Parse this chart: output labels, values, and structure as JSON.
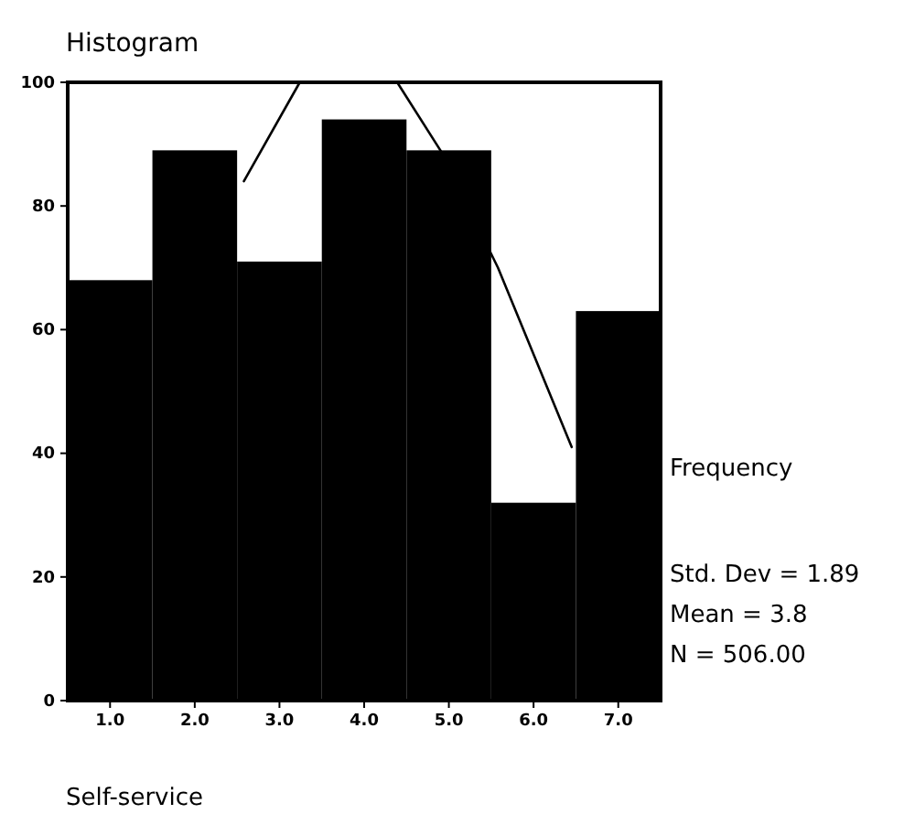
{
  "chart_data": {
    "type": "histogram",
    "title": "Histogram",
    "xlabel": "Self-service",
    "ylabel": "Frequency",
    "bins": [
      0.5,
      1.5,
      2.5,
      3.5,
      4.5,
      5.5,
      6.5,
      7.5
    ],
    "values": [
      68,
      89,
      71,
      94,
      89,
      32,
      63
    ],
    "color": "#000000",
    "series": [
      {
        "type": "line",
        "color": "#000000",
        "x": [
          2.58,
          3.24,
          3.8,
          4.39,
          4.9,
          5.58,
          6.45
        ],
        "values": [
          84,
          100,
          null,
          100,
          89,
          70,
          41
        ]
      }
    ],
    "xlim": [
      0.5,
      7.5
    ],
    "ylim": [
      0,
      100
    ],
    "xticks": [
      {
        "value": 1,
        "label": "1.0"
      },
      {
        "value": 2,
        "label": "2.0"
      },
      {
        "value": 3,
        "label": "3.0"
      },
      {
        "value": 4,
        "label": "4.0"
      },
      {
        "value": 5,
        "label": "5.0"
      },
      {
        "value": 6,
        "label": "6.0"
      },
      {
        "value": 7,
        "label": "7.0"
      }
    ],
    "yticks": [
      0,
      20,
      40,
      60,
      80,
      100
    ],
    "annotations": [
      "Std. Dev = 1.89",
      "Mean = 3.8",
      "N = 506.00"
    ],
    "grid": false
  }
}
